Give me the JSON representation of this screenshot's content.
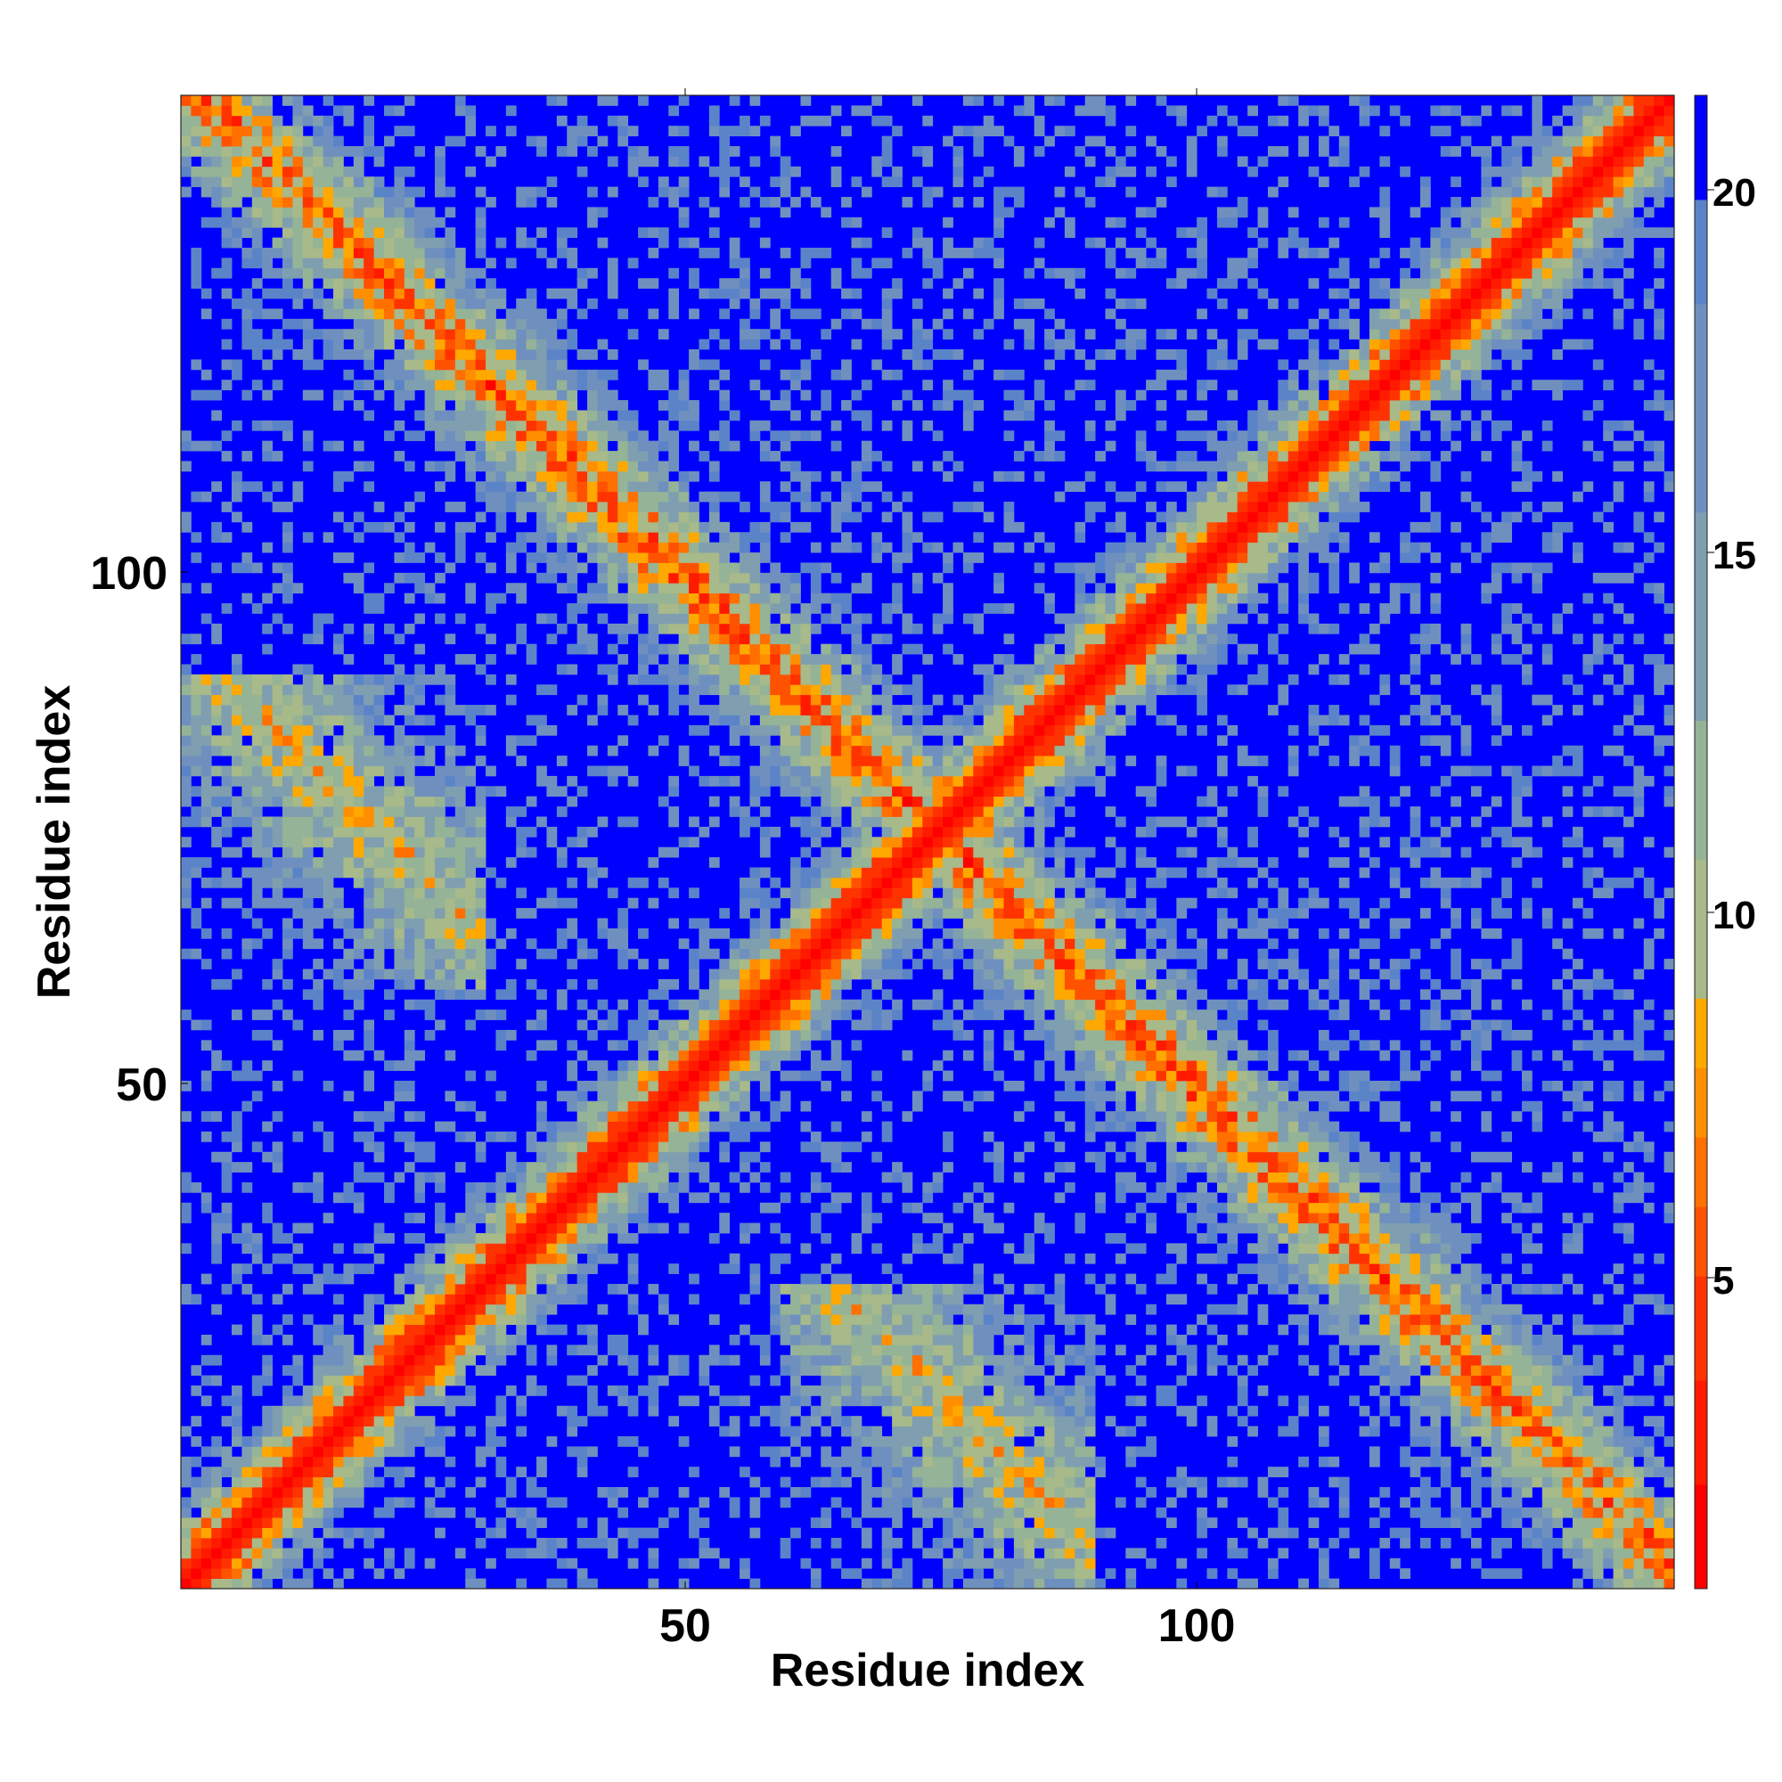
{
  "chart_data": {
    "type": "heatmap",
    "description": "residue-residue distance map (Å), symmetric",
    "title": "",
    "xlabel": "Residue index",
    "ylabel": "Residue index",
    "n_residues": 147,
    "xlim": [
      1,
      147
    ],
    "ylim": [
      1,
      147
    ],
    "x_ticks": [
      50,
      100
    ],
    "y_ticks": [
      50,
      100
    ],
    "colorbar": {
      "range": [
        0,
        21.5
      ],
      "ticks": [
        5,
        10,
        15,
        20
      ],
      "levels": [
        {
          "max": 1.5,
          "color": "#ff0000"
        },
        {
          "max": 3.0,
          "color": "#ff1a00"
        },
        {
          "max": 4.5,
          "color": "#ff3300"
        },
        {
          "max": 5.5,
          "color": "#ff5200"
        },
        {
          "max": 6.5,
          "color": "#ff7000"
        },
        {
          "max": 7.5,
          "color": "#ff8f00"
        },
        {
          "max": 8.5,
          "color": "#ffa800"
        },
        {
          "max": 10.5,
          "color": "#a8b98a"
        },
        {
          "max": 12.5,
          "color": "#95b396"
        },
        {
          "max": 15.5,
          "color": "#7f9fb0"
        },
        {
          "max": 18.5,
          "color": "#6f90bf"
        },
        {
          "max": 20.0,
          "color": "#5b84c8"
        },
        {
          "max": 99,
          "color": "#0000ff"
        }
      ]
    },
    "structure": {
      "diagonal": "distance grows with |i-j|; contact band along main diagonal",
      "antidiagonal_band": "second contact band i + j ≈ 150 (antiparallel pairing)",
      "corner_blocks": "contacts between residues 1-30 and 85-147 regions"
    },
    "grid": false
  },
  "labels": {
    "xlabel": "Residue index",
    "ylabel": "Residue index",
    "x_tick_50": "50",
    "x_tick_100": "100",
    "y_tick_50": "50",
    "y_tick_100": "100",
    "cb_tick_5": "5",
    "cb_tick_10": "10",
    "cb_tick_15": "15",
    "cb_tick_20": "20"
  }
}
